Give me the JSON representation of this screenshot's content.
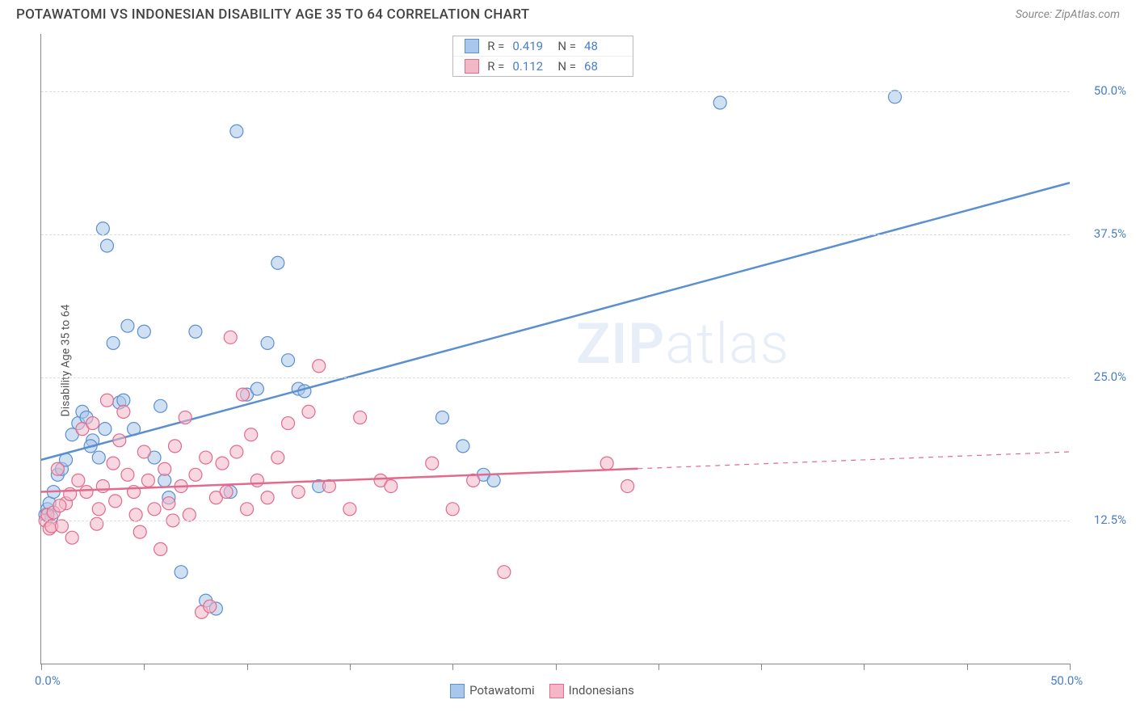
{
  "header": {
    "title": "POTAWATOMI VS INDONESIAN DISABILITY AGE 35 TO 64 CORRELATION CHART",
    "source_prefix": "Source: ",
    "source_name": "ZipAtlas.com"
  },
  "ylabel": "Disability Age 35 to 64",
  "watermark_a": "ZIP",
  "watermark_b": "atlas",
  "chart": {
    "type": "scatter",
    "xlim": [
      0,
      50
    ],
    "ylim": [
      0,
      55
    ],
    "x_ticks": [
      0,
      5,
      10,
      15,
      20,
      25,
      30,
      35,
      40,
      45,
      50
    ],
    "y_gridlines": [
      12.5,
      25.0,
      37.5,
      50.0
    ],
    "x_axis_labels": [
      {
        "v": 0,
        "t": "0.0%"
      },
      {
        "v": 50,
        "t": "50.0%"
      }
    ],
    "y_axis_labels": [
      {
        "v": 12.5,
        "t": "12.5%"
      },
      {
        "v": 25.0,
        "t": "25.0%"
      },
      {
        "v": 37.5,
        "t": "37.5%"
      },
      {
        "v": 50.0,
        "t": "50.0%"
      }
    ],
    "background_color": "#ffffff",
    "grid_color": "#dddddd",
    "marker_radius": 8,
    "marker_opacity": 0.55,
    "line_width": 2.5
  },
  "series": [
    {
      "key": "potawatomi",
      "label": "Potawatomi",
      "color_fill": "#a9c7ea",
      "color_stroke": "#5b8fd0",
      "r_value": "0.419",
      "n_value": "48",
      "trend": {
        "x1": 0,
        "y1": 17.8,
        "x2": 50,
        "y2": 42.0,
        "dash_from_x": null
      },
      "points": [
        [
          0.2,
          13.0
        ],
        [
          0.3,
          13.5
        ],
        [
          0.4,
          14.0
        ],
        [
          0.5,
          12.8
        ],
        [
          0.6,
          15.0
        ],
        [
          0.8,
          16.5
        ],
        [
          1.0,
          17.0
        ],
        [
          1.2,
          17.8
        ],
        [
          1.5,
          20.0
        ],
        [
          1.8,
          21.0
        ],
        [
          2.0,
          22.0
        ],
        [
          2.2,
          21.5
        ],
        [
          2.5,
          19.5
        ],
        [
          2.8,
          18.0
        ],
        [
          3.0,
          38.0
        ],
        [
          3.2,
          36.5
        ],
        [
          3.5,
          28.0
        ],
        [
          3.8,
          22.8
        ],
        [
          4.0,
          23.0
        ],
        [
          4.2,
          29.5
        ],
        [
          4.5,
          20.5
        ],
        [
          5.0,
          29.0
        ],
        [
          5.5,
          18.0
        ],
        [
          5.8,
          22.5
        ],
        [
          6.0,
          16.0
        ],
        [
          6.2,
          14.5
        ],
        [
          6.8,
          8.0
        ],
        [
          7.5,
          29.0
        ],
        [
          8.0,
          5.5
        ],
        [
          8.5,
          4.8
        ],
        [
          9.2,
          15.0
        ],
        [
          9.5,
          46.5
        ],
        [
          10.0,
          23.5
        ],
        [
          10.5,
          24.0
        ],
        [
          11.0,
          28.0
        ],
        [
          11.5,
          35.0
        ],
        [
          12.0,
          26.5
        ],
        [
          12.5,
          24.0
        ],
        [
          12.8,
          23.8
        ],
        [
          13.5,
          15.5
        ],
        [
          19.5,
          21.5
        ],
        [
          20.5,
          19.0
        ],
        [
          21.5,
          16.5
        ],
        [
          22.0,
          16.0
        ],
        [
          33.0,
          49.0
        ],
        [
          41.5,
          49.5
        ],
        [
          2.4,
          19.0
        ],
        [
          3.1,
          20.5
        ]
      ]
    },
    {
      "key": "indonesians",
      "label": "Indonesians",
      "color_fill": "#f4b7c7",
      "color_stroke": "#e26a8d",
      "r_value": "0.112",
      "n_value": "68",
      "trend": {
        "x1": 0,
        "y1": 15.0,
        "x2": 50,
        "y2": 18.5,
        "dash_from_x": 29
      },
      "points": [
        [
          0.2,
          12.5
        ],
        [
          0.3,
          13.0
        ],
        [
          0.4,
          11.8
        ],
        [
          0.5,
          12.0
        ],
        [
          0.6,
          13.2
        ],
        [
          0.8,
          17.0
        ],
        [
          1.0,
          12.0
        ],
        [
          1.2,
          14.0
        ],
        [
          1.5,
          11.0
        ],
        [
          1.8,
          16.0
        ],
        [
          2.0,
          20.5
        ],
        [
          2.2,
          15.0
        ],
        [
          2.5,
          21.0
        ],
        [
          2.8,
          13.5
        ],
        [
          3.0,
          15.5
        ],
        [
          3.2,
          23.0
        ],
        [
          3.5,
          17.5
        ],
        [
          3.8,
          19.5
        ],
        [
          4.0,
          22.0
        ],
        [
          4.2,
          16.5
        ],
        [
          4.5,
          15.0
        ],
        [
          4.8,
          11.5
        ],
        [
          5.0,
          18.5
        ],
        [
          5.2,
          16.0
        ],
        [
          5.5,
          13.5
        ],
        [
          5.8,
          10.0
        ],
        [
          6.0,
          17.0
        ],
        [
          6.2,
          14.0
        ],
        [
          6.5,
          19.0
        ],
        [
          6.8,
          15.5
        ],
        [
          7.0,
          21.5
        ],
        [
          7.2,
          13.0
        ],
        [
          7.5,
          16.5
        ],
        [
          7.8,
          4.5
        ],
        [
          8.0,
          18.0
        ],
        [
          8.2,
          5.0
        ],
        [
          8.5,
          14.5
        ],
        [
          8.8,
          17.5
        ],
        [
          9.0,
          15.0
        ],
        [
          9.2,
          28.5
        ],
        [
          9.5,
          18.5
        ],
        [
          9.8,
          23.5
        ],
        [
          10.0,
          13.5
        ],
        [
          10.2,
          20.0
        ],
        [
          10.5,
          16.0
        ],
        [
          11.0,
          14.5
        ],
        [
          11.5,
          18.0
        ],
        [
          12.0,
          21.0
        ],
        [
          12.5,
          15.0
        ],
        [
          13.0,
          22.0
        ],
        [
          13.5,
          26.0
        ],
        [
          14.0,
          15.5
        ],
        [
          15.0,
          13.5
        ],
        [
          15.5,
          21.5
        ],
        [
          16.5,
          16.0
        ],
        [
          17.0,
          15.5
        ],
        [
          19.0,
          17.5
        ],
        [
          20.0,
          13.5
        ],
        [
          21.0,
          16.0
        ],
        [
          22.5,
          8.0
        ],
        [
          27.5,
          17.5
        ],
        [
          28.5,
          15.5
        ],
        [
          0.9,
          13.8
        ],
        [
          1.4,
          14.8
        ],
        [
          2.7,
          12.2
        ],
        [
          3.6,
          14.2
        ],
        [
          4.6,
          13.0
        ],
        [
          6.4,
          12.5
        ]
      ]
    }
  ],
  "legend_labels": {
    "R": "R =",
    "N": "N ="
  }
}
